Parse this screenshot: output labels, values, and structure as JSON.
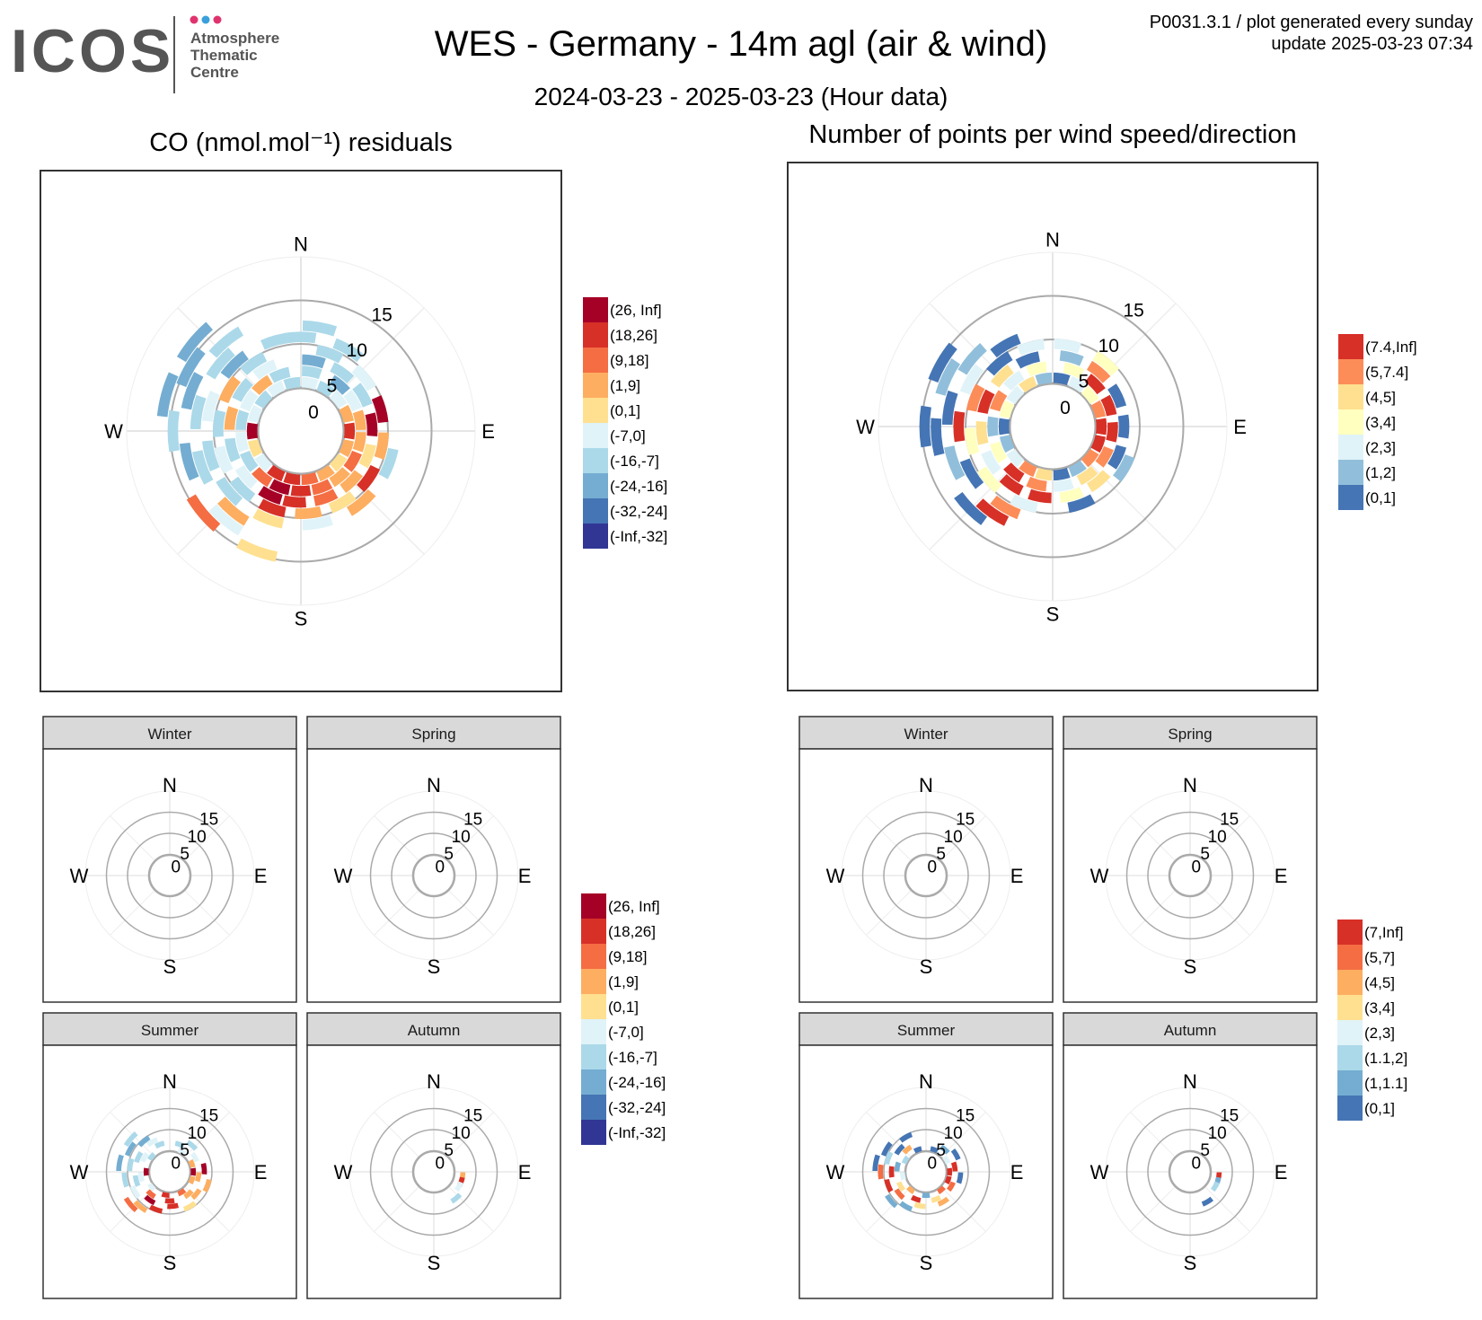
{
  "header": {
    "logo_text": "ICOS",
    "logo_sub": [
      "Atmosphere",
      "Thematic",
      "Centre"
    ],
    "logo_dot_colors": [
      "#e0336e",
      "#3aa0dc",
      "#e0336e"
    ],
    "title": "WES - Germany - 14m agl (air & wind)",
    "subtitle": "2024-03-23 - 2025-03-23 (Hour data)",
    "info_line1": "P0031.3.1 / plot generated every sunday",
    "info_line2": "update  2025-03-23 07:34"
  },
  "colors": {
    "co": [
      "#a50026",
      "#d73027",
      "#f46d43",
      "#fdae61",
      "#fee090",
      "#e0f3f8",
      "#abd9e9",
      "#74add1",
      "#4575b4",
      "#313695"
    ],
    "pts": [
      "#d73027",
      "#fc8d59",
      "#fee090",
      "#ffffbf",
      "#e0f3f8",
      "#91bfdb",
      "#4575b4"
    ],
    "pts_season": [
      "#d73027",
      "#f46d43",
      "#fdae61",
      "#fee090",
      "#e0f3f8",
      "#abd9e9",
      "#74add1",
      "#4575b4"
    ],
    "grid": "#aaaaaa",
    "strip": "#d9d9d9"
  },
  "compass": {
    "n": "N",
    "e": "E",
    "s": "S",
    "w": "W"
  },
  "chart_data": [
    {
      "type": "polar-heatmap",
      "title": "CO (nmol.mol⁻¹) residuals",
      "r_ticks": [
        "0",
        "5",
        "10",
        "15"
      ],
      "legend": [
        "(26, Inf]",
        "(18,26]",
        "(9,18]",
        "(1,9]",
        "(0,1]",
        "(-7,0]",
        "(-16,-7]",
        "(-24,-16]",
        "(-32,-24]",
        "(-Inf,-32]"
      ],
      "note": "cells are (wind direction deg, wind speed m/s, legend class index)",
      "cells": [
        [
          10,
          1,
          5
        ],
        [
          30,
          1,
          6
        ],
        [
          50,
          1,
          5
        ],
        [
          70,
          1,
          3
        ],
        [
          90,
          1,
          1
        ],
        [
          110,
          1,
          3
        ],
        [
          130,
          1,
          4
        ],
        [
          150,
          1,
          3
        ],
        [
          170,
          1,
          2
        ],
        [
          190,
          1,
          1
        ],
        [
          210,
          1,
          1
        ],
        [
          230,
          1,
          5
        ],
        [
          250,
          1,
          4
        ],
        [
          270,
          1,
          0
        ],
        [
          290,
          1,
          5
        ],
        [
          310,
          1,
          6
        ],
        [
          330,
          1,
          5
        ],
        [
          350,
          1,
          6
        ],
        [
          10,
          2,
          6
        ],
        [
          40,
          2,
          7
        ],
        [
          60,
          2,
          5
        ],
        [
          80,
          2,
          3
        ],
        [
          100,
          2,
          3
        ],
        [
          120,
          2,
          2
        ],
        [
          140,
          2,
          3
        ],
        [
          160,
          2,
          2
        ],
        [
          180,
          2,
          1
        ],
        [
          200,
          2,
          0
        ],
        [
          220,
          2,
          2
        ],
        [
          240,
          2,
          6
        ],
        [
          260,
          2,
          5
        ],
        [
          280,
          2,
          6
        ],
        [
          300,
          2,
          5
        ],
        [
          320,
          2,
          3
        ],
        [
          340,
          2,
          6
        ],
        [
          10,
          3,
          7
        ],
        [
          35,
          3,
          6
        ],
        [
          60,
          3,
          6
        ],
        [
          85,
          3,
          0
        ],
        [
          110,
          3,
          4
        ],
        [
          135,
          3,
          3
        ],
        [
          160,
          3,
          2
        ],
        [
          185,
          3,
          1
        ],
        [
          205,
          3,
          0
        ],
        [
          230,
          3,
          5
        ],
        [
          255,
          3,
          6
        ],
        [
          280,
          3,
          3
        ],
        [
          305,
          3,
          6
        ],
        [
          330,
          3,
          5
        ],
        [
          20,
          4,
          6
        ],
        [
          50,
          4,
          5
        ],
        [
          75,
          4,
          0
        ],
        [
          100,
          4,
          3
        ],
        [
          125,
          4,
          1
        ],
        [
          150,
          4,
          4
        ],
        [
          175,
          4,
          3
        ],
        [
          200,
          4,
          1
        ],
        [
          225,
          4,
          6
        ],
        [
          250,
          4,
          5
        ],
        [
          275,
          4,
          6
        ],
        [
          300,
          4,
          3
        ],
        [
          325,
          4,
          6
        ],
        [
          0,
          5,
          6
        ],
        [
          30,
          5,
          6
        ],
        [
          110,
          5,
          6
        ],
        [
          140,
          5,
          3
        ],
        [
          170,
          5,
          5
        ],
        [
          200,
          5,
          4
        ],
        [
          230,
          5,
          6
        ],
        [
          255,
          5,
          6
        ],
        [
          285,
          5,
          5
        ],
        [
          315,
          5,
          7
        ],
        [
          345,
          5,
          6
        ],
        [
          10,
          6,
          6
        ],
        [
          310,
          6,
          6
        ],
        [
          220,
          6,
          3
        ],
        [
          250,
          6,
          6
        ],
        [
          280,
          6,
          6
        ],
        [
          220,
          7,
          5
        ],
        [
          255,
          7,
          7
        ],
        [
          290,
          7,
          7
        ],
        [
          320,
          7,
          6
        ],
        [
          230,
          8,
          2
        ],
        [
          200,
          8,
          4
        ],
        [
          300,
          8,
          7
        ],
        [
          270,
          8,
          6
        ],
        [
          285,
          9,
          7
        ],
        [
          310,
          9,
          7
        ]
      ]
    },
    {
      "type": "polar-heatmap",
      "title": "Number of points per wind speed/direction",
      "r_ticks": [
        "0",
        "5",
        "10",
        "15"
      ],
      "legend": [
        "(7.4,Inf]",
        "(5,7.4]",
        "(4,5]",
        "(3,4]",
        "(2,3]",
        "(1,2]",
        "(0,1]"
      ],
      "note": "cells are (wind direction deg, wind speed m/s, legend class index)",
      "cells": [
        [
          10,
          1,
          6
        ],
        [
          30,
          1,
          4
        ],
        [
          50,
          1,
          3
        ],
        [
          70,
          1,
          1
        ],
        [
          90,
          1,
          0
        ],
        [
          110,
          1,
          0
        ],
        [
          130,
          1,
          1
        ],
        [
          150,
          1,
          5
        ],
        [
          170,
          1,
          6
        ],
        [
          190,
          1,
          2
        ],
        [
          210,
          1,
          1
        ],
        [
          230,
          1,
          4
        ],
        [
          250,
          1,
          5
        ],
        [
          270,
          1,
          6
        ],
        [
          290,
          1,
          3
        ],
        [
          310,
          1,
          4
        ],
        [
          330,
          1,
          2
        ],
        [
          350,
          1,
          5
        ],
        [
          20,
          2,
          3
        ],
        [
          45,
          2,
          0
        ],
        [
          70,
          2,
          0
        ],
        [
          95,
          2,
          0
        ],
        [
          120,
          2,
          1
        ],
        [
          145,
          2,
          2
        ],
        [
          170,
          2,
          4
        ],
        [
          195,
          2,
          1
        ],
        [
          220,
          2,
          0
        ],
        [
          245,
          2,
          3
        ],
        [
          270,
          2,
          5
        ],
        [
          295,
          2,
          1
        ],
        [
          320,
          2,
          4
        ],
        [
          345,
          2,
          3
        ],
        [
          15,
          3,
          5
        ],
        [
          40,
          3,
          1
        ],
        [
          65,
          3,
          6
        ],
        [
          90,
          3,
          6
        ],
        [
          115,
          3,
          6
        ],
        [
          140,
          3,
          2
        ],
        [
          165,
          3,
          3
        ],
        [
          190,
          3,
          0
        ],
        [
          215,
          3,
          0
        ],
        [
          240,
          3,
          4
        ],
        [
          265,
          3,
          2
        ],
        [
          290,
          3,
          0
        ],
        [
          315,
          3,
          2
        ],
        [
          340,
          3,
          6
        ],
        [
          10,
          4,
          4
        ],
        [
          40,
          4,
          3
        ],
        [
          120,
          4,
          5
        ],
        [
          160,
          4,
          6
        ],
        [
          200,
          4,
          4
        ],
        [
          230,
          4,
          3
        ],
        [
          260,
          4,
          3
        ],
        [
          290,
          4,
          1
        ],
        [
          320,
          4,
          6
        ],
        [
          345,
          4,
          4
        ],
        [
          210,
          5,
          1
        ],
        [
          240,
          5,
          6
        ],
        [
          270,
          5,
          0
        ],
        [
          300,
          5,
          4
        ],
        [
          330,
          5,
          6
        ],
        [
          215,
          6,
          0
        ],
        [
          250,
          6,
          5
        ],
        [
          280,
          6,
          6
        ],
        [
          310,
          6,
          5
        ],
        [
          225,
          7,
          6
        ],
        [
          265,
          7,
          6
        ],
        [
          295,
          7,
          5
        ],
        [
          270,
          8,
          6
        ],
        [
          300,
          8,
          6
        ]
      ]
    }
  ],
  "seasons_co": [
    {
      "name": "Winter",
      "cells": []
    },
    {
      "name": "Spring",
      "cells": []
    },
    {
      "name": "Summer",
      "cells": [
        [
          30,
          1,
          5
        ],
        [
          70,
          1,
          3
        ],
        [
          90,
          1,
          0
        ],
        [
          110,
          1,
          3
        ],
        [
          150,
          1,
          2
        ],
        [
          190,
          1,
          1
        ],
        [
          230,
          1,
          5
        ],
        [
          270,
          1,
          0
        ],
        [
          310,
          1,
          6
        ],
        [
          20,
          2,
          6
        ],
        [
          60,
          2,
          5
        ],
        [
          100,
          2,
          3
        ],
        [
          140,
          2,
          3
        ],
        [
          180,
          2,
          1
        ],
        [
          220,
          2,
          2
        ],
        [
          260,
          2,
          5
        ],
        [
          300,
          2,
          5
        ],
        [
          340,
          2,
          6
        ],
        [
          40,
          3,
          6
        ],
        [
          85,
          3,
          0
        ],
        [
          130,
          3,
          3
        ],
        [
          175,
          3,
          1
        ],
        [
          215,
          3,
          0
        ],
        [
          255,
          3,
          6
        ],
        [
          295,
          3,
          6
        ],
        [
          330,
          3,
          5
        ],
        [
          110,
          4,
          3
        ],
        [
          150,
          4,
          4
        ],
        [
          200,
          4,
          1
        ],
        [
          240,
          4,
          5
        ],
        [
          280,
          4,
          6
        ],
        [
          320,
          4,
          7
        ],
        [
          220,
          5,
          3
        ],
        [
          260,
          5,
          6
        ],
        [
          300,
          5,
          7
        ],
        [
          230,
          6,
          2
        ],
        [
          280,
          6,
          7
        ],
        [
          310,
          6,
          6
        ]
      ]
    },
    {
      "name": "Autumn",
      "cells": [
        [
          100,
          2,
          3
        ],
        [
          110,
          2,
          1
        ],
        [
          120,
          2,
          5
        ],
        [
          140,
          3,
          6
        ]
      ]
    }
  ],
  "seasons_pts": [
    {
      "name": "Winter",
      "cells": []
    },
    {
      "name": "Spring",
      "cells": []
    },
    {
      "name": "Summer",
      "cells": [
        [
          20,
          1,
          7
        ],
        [
          60,
          1,
          4
        ],
        [
          90,
          1,
          0
        ],
        [
          110,
          1,
          0
        ],
        [
          140,
          1,
          1
        ],
        [
          180,
          1,
          6
        ],
        [
          220,
          1,
          2
        ],
        [
          260,
          1,
          4
        ],
        [
          300,
          1,
          5
        ],
        [
          340,
          1,
          7
        ],
        [
          40,
          2,
          6
        ],
        [
          80,
          2,
          0
        ],
        [
          120,
          2,
          1
        ],
        [
          160,
          2,
          3
        ],
        [
          200,
          2,
          0
        ],
        [
          240,
          2,
          3
        ],
        [
          280,
          2,
          6
        ],
        [
          320,
          2,
          2
        ],
        [
          60,
          3,
          7
        ],
        [
          100,
          3,
          7
        ],
        [
          150,
          3,
          2
        ],
        [
          190,
          3,
          3
        ],
        [
          230,
          3,
          1
        ],
        [
          270,
          3,
          0
        ],
        [
          310,
          3,
          7
        ],
        [
          210,
          4,
          6
        ],
        [
          250,
          4,
          0
        ],
        [
          290,
          4,
          5
        ],
        [
          330,
          4,
          7
        ],
        [
          230,
          5,
          6
        ],
        [
          270,
          5,
          1
        ],
        [
          300,
          5,
          7
        ],
        [
          280,
          6,
          7
        ]
      ]
    },
    {
      "name": "Autumn",
      "cells": [
        [
          100,
          2,
          0
        ],
        [
          110,
          2,
          6
        ],
        [
          120,
          2,
          5
        ],
        [
          150,
          3,
          7
        ]
      ]
    }
  ],
  "legend_co_season": [
    "(26, Inf]",
    "(18,26]",
    "(9,18]",
    "(1,9]",
    "(0,1]",
    "(-7,0]",
    "(-16,-7]",
    "(-24,-16]",
    "(-32,-24]",
    "(-Inf,-32]"
  ],
  "legend_pts_season": [
    "(7,Inf]",
    "(5,7]",
    "(4,5]",
    "(3,4]",
    "(2,3]",
    "(1.1,2]",
    "(1,1.1]",
    "(0,1]"
  ]
}
